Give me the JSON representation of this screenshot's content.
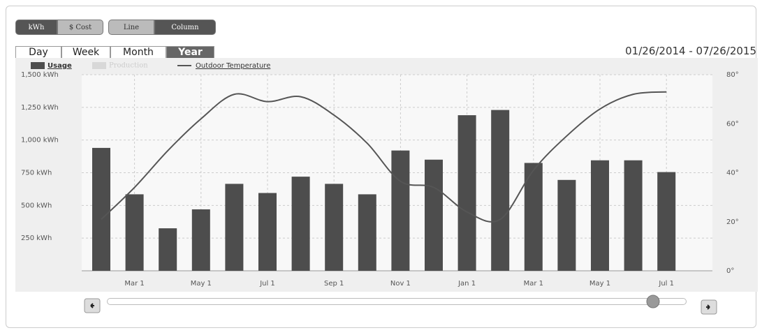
{
  "toolbar": {
    "buttons": [
      "kWh",
      "$ Cost",
      "Line",
      "Column"
    ]
  },
  "tabs": [
    "Day",
    "Week",
    "Month",
    "Year"
  ],
  "date_range": "01/26/2014 - 07/26/2015",
  "chart_data": {
    "type": "bar",
    "categories": [
      null,
      "Mar 1",
      null,
      "May 1",
      null,
      "Jul 1",
      null,
      "Sep 1",
      null,
      "Nov 1",
      null,
      "Jan 1",
      null,
      "Mar 1",
      null,
      "May 1",
      null,
      "Jul 1"
    ],
    "series": [
      {
        "name": "Usage",
        "color": "#4d4d4d",
        "type": "bar",
        "values": [
          940,
          585,
          325,
          470,
          665,
          595,
          720,
          665,
          585,
          920,
          850,
          1190,
          1230,
          825,
          695,
          845,
          845,
          755
        ]
      },
      {
        "name": "Outdoor Temperature",
        "color": "#555555",
        "type": "line",
        "axis": "y2",
        "values": [
          21,
          34,
          49,
          62,
          72,
          69,
          71,
          63.5,
          52,
          36.5,
          34,
          24,
          21,
          41,
          55,
          66,
          72,
          73
        ]
      }
    ],
    "inactive_series": "Production",
    "ylim": [
      0,
      1500
    ],
    "yticks": [
      0,
      {
        "value": 250,
        "label": "250 kWh"
      },
      {
        "value": 500,
        "label": "500 kWh"
      },
      {
        "value": 750,
        "label": "750 kWh"
      },
      {
        "value": 1000,
        "label": "1,000 kWh"
      },
      {
        "value": 1250,
        "label": "1,250 kWh"
      },
      {
        "value": 1500,
        "label": "1,500 kWh"
      }
    ],
    "y2lim": [
      0,
      80
    ],
    "y2ticks": [
      {
        "value": 0,
        "label": "0°"
      },
      {
        "value": 20,
        "label": "20°"
      },
      {
        "value": 40,
        "label": "40°"
      },
      {
        "value": 60,
        "label": "60°"
      },
      {
        "value": 80,
        "label": "80°"
      }
    ],
    "grid": true
  }
}
